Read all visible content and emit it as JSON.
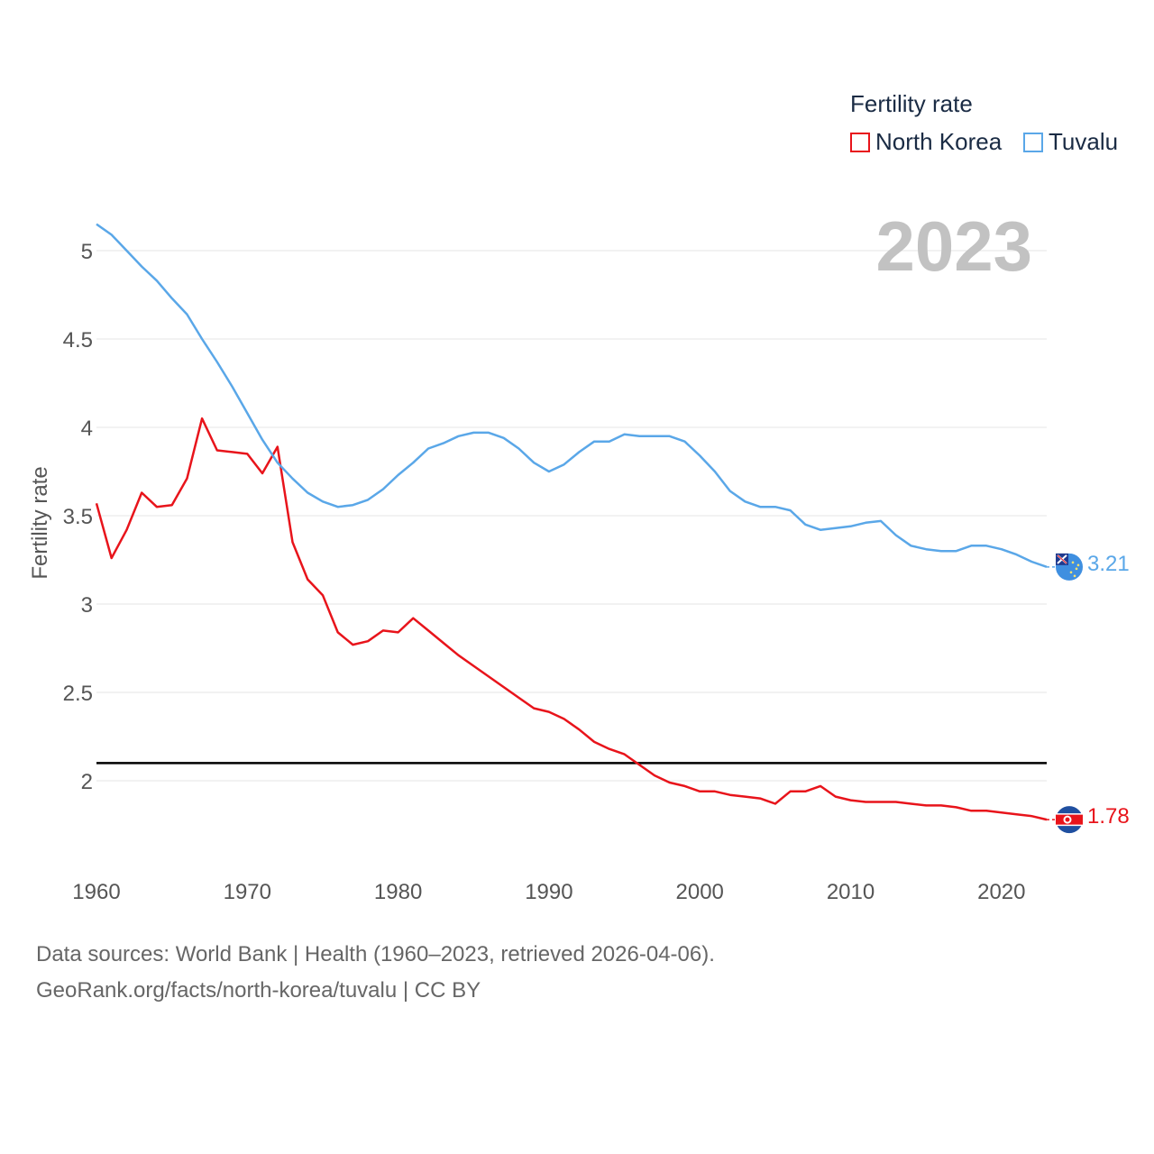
{
  "legend": {
    "title": "Fertility rate",
    "items": [
      {
        "label": "North Korea",
        "color": "#e8141b"
      },
      {
        "label": "Tuvalu",
        "color": "#5aa7e8"
      }
    ]
  },
  "year_label": "2023",
  "footer": {
    "line1": "Data sources: World Bank | Health (1960–2023, retrieved 2026-04-06).",
    "line2": "GeoRank.org/facts/north-korea/tuvalu | CC BY"
  },
  "end_labels": {
    "north_korea": "1.78",
    "tuvalu": "3.21"
  },
  "icons": {
    "north_korea": "north-korea-flag-icon",
    "tuvalu": "tuvalu-flag-icon"
  },
  "chart_data": {
    "type": "line",
    "title": "",
    "xlabel": "",
    "ylabel": "Fertility rate",
    "xlim": [
      1960,
      2023
    ],
    "ylim": [
      1.5,
      5.25
    ],
    "x_ticks": [
      1960,
      1970,
      1980,
      1990,
      2000,
      2010,
      2020
    ],
    "y_ticks": [
      2,
      2.5,
      3,
      3.5,
      4,
      4.5,
      5
    ],
    "y_tick_labels": [
      "2",
      "2.5",
      "3",
      "3.5",
      "4",
      "4.5",
      "5"
    ],
    "reference_line": {
      "y": 2.1,
      "color": "#000000"
    },
    "x": [
      1960,
      1961,
      1962,
      1963,
      1964,
      1965,
      1966,
      1967,
      1968,
      1969,
      1970,
      1971,
      1972,
      1973,
      1974,
      1975,
      1976,
      1977,
      1978,
      1979,
      1980,
      1981,
      1982,
      1983,
      1984,
      1985,
      1986,
      1987,
      1988,
      1989,
      1990,
      1991,
      1992,
      1993,
      1994,
      1995,
      1996,
      1997,
      1998,
      1999,
      2000,
      2001,
      2002,
      2003,
      2004,
      2005,
      2006,
      2007,
      2008,
      2009,
      2010,
      2011,
      2012,
      2013,
      2014,
      2015,
      2016,
      2017,
      2018,
      2019,
      2020,
      2021,
      2022,
      2023
    ],
    "series": [
      {
        "name": "North Korea",
        "color": "#e8141b",
        "values": [
          3.57,
          3.26,
          3.42,
          3.63,
          3.55,
          3.56,
          3.71,
          4.05,
          3.87,
          3.86,
          3.85,
          3.74,
          3.89,
          3.35,
          3.14,
          3.05,
          2.84,
          2.77,
          2.79,
          2.85,
          2.84,
          2.92,
          2.85,
          2.78,
          2.71,
          2.65,
          2.59,
          2.53,
          2.47,
          2.41,
          2.39,
          2.35,
          2.29,
          2.22,
          2.18,
          2.15,
          2.09,
          2.03,
          1.99,
          1.97,
          1.94,
          1.94,
          1.92,
          1.91,
          1.9,
          1.87,
          1.94,
          1.94,
          1.97,
          1.91,
          1.89,
          1.88,
          1.88,
          1.88,
          1.87,
          1.86,
          1.86,
          1.85,
          1.83,
          1.83,
          1.82,
          1.81,
          1.8,
          1.78
        ]
      },
      {
        "name": "Tuvalu",
        "color": "#5aa7e8",
        "values": [
          5.15,
          5.09,
          5.0,
          4.91,
          4.83,
          4.73,
          4.64,
          4.5,
          4.37,
          4.23,
          4.08,
          3.93,
          3.8,
          3.71,
          3.63,
          3.58,
          3.55,
          3.56,
          3.59,
          3.65,
          3.73,
          3.8,
          3.88,
          3.91,
          3.95,
          3.97,
          3.97,
          3.94,
          3.88,
          3.8,
          3.75,
          3.79,
          3.86,
          3.92,
          3.92,
          3.96,
          3.95,
          3.95,
          3.95,
          3.92,
          3.84,
          3.75,
          3.64,
          3.58,
          3.55,
          3.55,
          3.53,
          3.45,
          3.42,
          3.43,
          3.44,
          3.46,
          3.47,
          3.39,
          3.33,
          3.31,
          3.3,
          3.3,
          3.33,
          3.33,
          3.31,
          3.28,
          3.24,
          3.21
        ]
      }
    ]
  }
}
